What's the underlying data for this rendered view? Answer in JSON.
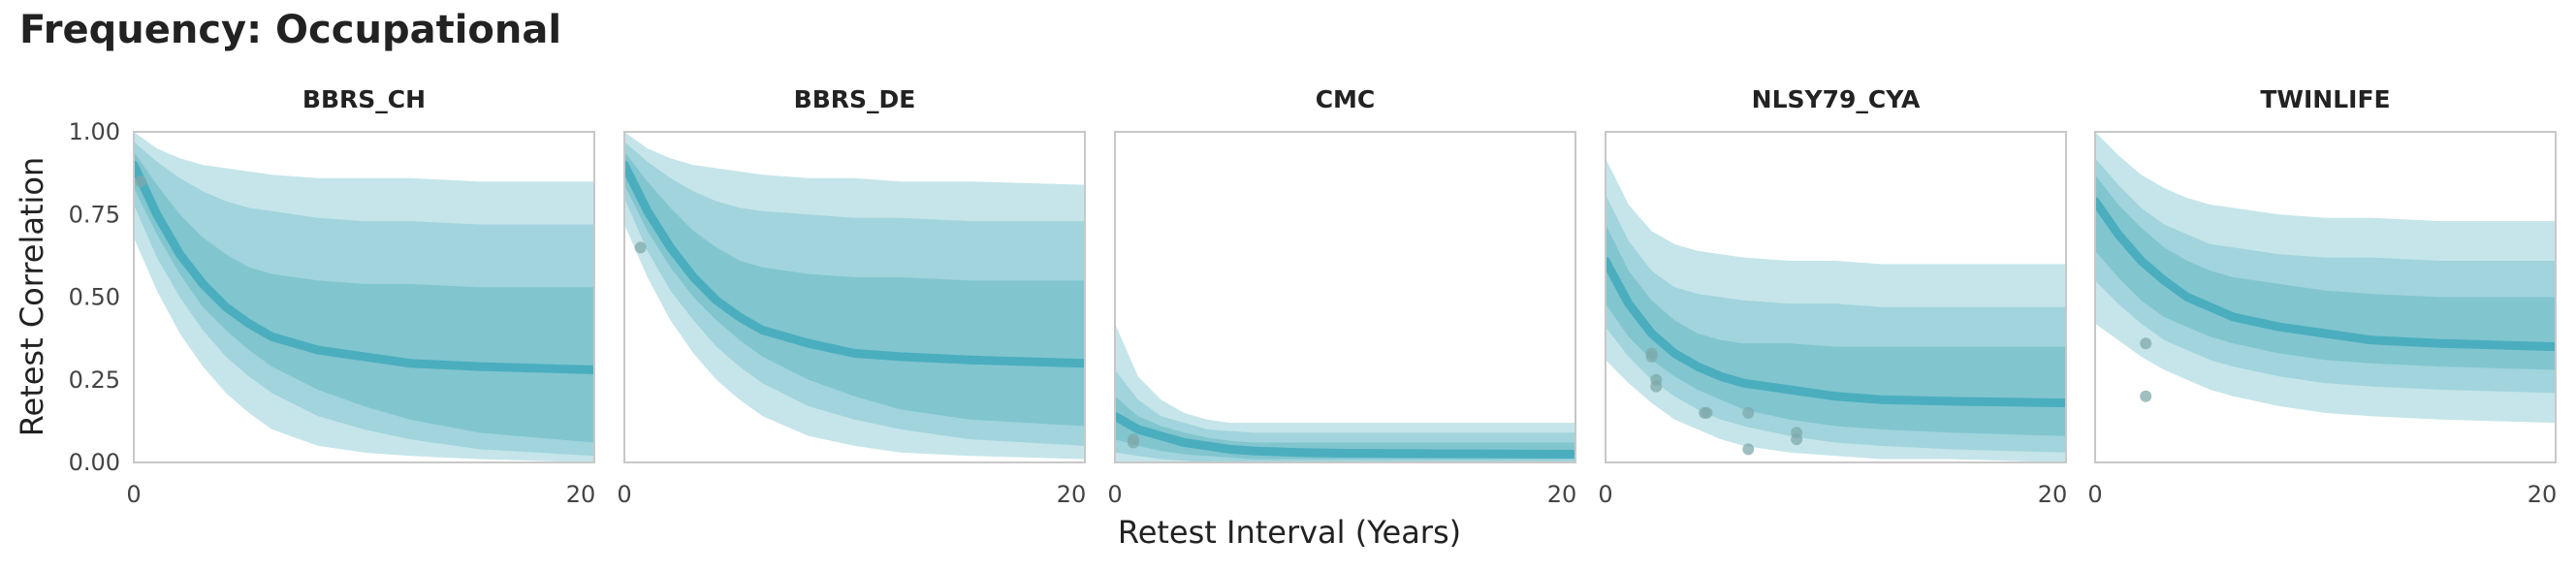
{
  "title": "Frequency: Occupational",
  "colors": {
    "band_outer": "#c5e5ea",
    "band_mid": "#a1d4dc",
    "band_inner": "#81c5cf",
    "line": "#4aaebe",
    "points": "#7fa9ab"
  },
  "chart_data": {
    "type": "line",
    "xlabel": "Retest Interval (Years)",
    "ylabel": "Retest Correlation",
    "xlim": [
      0,
      20
    ],
    "ylim": [
      0,
      1
    ],
    "xticks": [
      "0",
      "20"
    ],
    "yticks": [
      "0.00",
      "0.25",
      "0.50",
      "0.75",
      "1.00"
    ],
    "panels": [
      {
        "name": "BBRS_CH",
        "x": [
          0,
          1,
          2,
          3,
          4,
          5,
          6,
          8,
          10,
          12,
          15,
          20
        ],
        "median": [
          0.9,
          0.75,
          0.63,
          0.54,
          0.47,
          0.42,
          0.38,
          0.34,
          0.32,
          0.3,
          0.29,
          0.28
        ],
        "bands": [
          {
            "lower": [
              0.68,
              0.52,
              0.39,
              0.29,
              0.21,
              0.15,
              0.1,
              0.05,
              0.03,
              0.02,
              0.01,
              0.0
            ],
            "upper": [
              1.0,
              0.95,
              0.92,
              0.9,
              0.89,
              0.88,
              0.87,
              0.86,
              0.86,
              0.86,
              0.85,
              0.85
            ]
          },
          {
            "lower": [
              0.78,
              0.62,
              0.5,
              0.4,
              0.32,
              0.26,
              0.21,
              0.14,
              0.1,
              0.07,
              0.04,
              0.02
            ],
            "upper": [
              0.97,
              0.91,
              0.86,
              0.82,
              0.79,
              0.77,
              0.76,
              0.74,
              0.73,
              0.73,
              0.72,
              0.72
            ]
          },
          {
            "lower": [
              0.83,
              0.69,
              0.57,
              0.47,
              0.4,
              0.34,
              0.29,
              0.22,
              0.17,
              0.13,
              0.09,
              0.06
            ],
            "upper": [
              0.94,
              0.84,
              0.75,
              0.68,
              0.63,
              0.59,
              0.57,
              0.55,
              0.54,
              0.54,
              0.53,
              0.53
            ]
          }
        ],
        "points": [
          {
            "x": 0.3,
            "y": 0.85
          }
        ]
      },
      {
        "name": "BBRS_DE",
        "x": [
          0,
          1,
          2,
          3,
          4,
          5,
          6,
          8,
          10,
          12,
          15,
          20
        ],
        "median": [
          0.9,
          0.76,
          0.65,
          0.56,
          0.49,
          0.44,
          0.4,
          0.36,
          0.33,
          0.32,
          0.31,
          0.3
        ],
        "bands": [
          {
            "lower": [
              0.72,
              0.56,
              0.43,
              0.33,
              0.25,
              0.19,
              0.14,
              0.08,
              0.05,
              0.03,
              0.02,
              0.01
            ],
            "upper": [
              1.0,
              0.95,
              0.92,
              0.9,
              0.89,
              0.88,
              0.87,
              0.86,
              0.86,
              0.85,
              0.85,
              0.84
            ]
          },
          {
            "lower": [
              0.8,
              0.64,
              0.52,
              0.43,
              0.35,
              0.29,
              0.24,
              0.17,
              0.13,
              0.1,
              0.07,
              0.05
            ],
            "upper": [
              0.97,
              0.91,
              0.86,
              0.82,
              0.79,
              0.77,
              0.76,
              0.75,
              0.74,
              0.74,
              0.73,
              0.73
            ]
          },
          {
            "lower": [
              0.84,
              0.7,
              0.59,
              0.5,
              0.43,
              0.37,
              0.32,
              0.25,
              0.2,
              0.16,
              0.13,
              0.11
            ],
            "upper": [
              0.94,
              0.85,
              0.77,
              0.7,
              0.65,
              0.61,
              0.59,
              0.57,
              0.56,
              0.56,
              0.55,
              0.55
            ]
          }
        ],
        "points": [
          {
            "x": 0.7,
            "y": 0.65
          }
        ]
      },
      {
        "name": "CMC",
        "x": [
          0,
          1,
          2,
          3,
          4,
          5,
          6,
          8,
          10,
          12,
          15,
          20
        ],
        "median": [
          0.14,
          0.1,
          0.08,
          0.06,
          0.05,
          0.04,
          0.035,
          0.03,
          0.028,
          0.027,
          0.026,
          0.025
        ],
        "bands": [
          {
            "lower": [
              0.0,
              0.0,
              0.0,
              0.0,
              0.0,
              0.0,
              0.0,
              0.0,
              0.0,
              0.0,
              0.0,
              0.0
            ],
            "upper": [
              0.42,
              0.26,
              0.19,
              0.15,
              0.13,
              0.12,
              0.12,
              0.12,
              0.12,
              0.12,
              0.12,
              0.12
            ]
          },
          {
            "lower": [
              0.03,
              0.02,
              0.01,
              0.005,
              0.0,
              0.0,
              0.0,
              0.0,
              0.0,
              0.0,
              0.0,
              0.0
            ],
            "upper": [
              0.28,
              0.19,
              0.14,
              0.12,
              0.1,
              0.095,
              0.09,
              0.09,
              0.09,
              0.09,
              0.09,
              0.09
            ]
          },
          {
            "lower": [
              0.07,
              0.05,
              0.035,
              0.025,
              0.02,
              0.015,
              0.01,
              0.01,
              0.01,
              0.01,
              0.01,
              0.01
            ],
            "upper": [
              0.2,
              0.14,
              0.11,
              0.09,
              0.075,
              0.065,
              0.06,
              0.06,
              0.06,
              0.06,
              0.06,
              0.06
            ]
          }
        ],
        "points": [
          {
            "x": 0.8,
            "y": 0.07
          },
          {
            "x": 0.8,
            "y": 0.06
          }
        ]
      },
      {
        "name": "NLSY79_CYA",
        "x": [
          0,
          1,
          2,
          3,
          4,
          5,
          6,
          8,
          10,
          12,
          15,
          20
        ],
        "median": [
          0.61,
          0.48,
          0.39,
          0.33,
          0.29,
          0.26,
          0.24,
          0.22,
          0.2,
          0.19,
          0.185,
          0.18
        ],
        "bands": [
          {
            "lower": [
              0.31,
              0.24,
              0.18,
              0.13,
              0.1,
              0.07,
              0.05,
              0.03,
              0.02,
              0.01,
              0.01,
              0.0
            ],
            "upper": [
              0.92,
              0.78,
              0.7,
              0.66,
              0.64,
              0.63,
              0.62,
              0.61,
              0.61,
              0.6,
              0.6,
              0.6
            ]
          },
          {
            "lower": [
              0.41,
              0.32,
              0.25,
              0.2,
              0.16,
              0.13,
              0.11,
              0.08,
              0.06,
              0.05,
              0.04,
              0.03
            ],
            "upper": [
              0.81,
              0.67,
              0.58,
              0.53,
              0.51,
              0.5,
              0.49,
              0.48,
              0.48,
              0.47,
              0.47,
              0.47
            ]
          },
          {
            "lower": [
              0.48,
              0.38,
              0.31,
              0.26,
              0.22,
              0.19,
              0.16,
              0.13,
              0.11,
              0.1,
              0.09,
              0.08
            ],
            "upper": [
              0.72,
              0.58,
              0.49,
              0.43,
              0.39,
              0.37,
              0.36,
              0.36,
              0.35,
              0.35,
              0.35,
              0.35
            ]
          }
        ],
        "points": [
          {
            "x": 2.0,
            "y": 0.33
          },
          {
            "x": 2.0,
            "y": 0.32
          },
          {
            "x": 2.2,
            "y": 0.25
          },
          {
            "x": 2.2,
            "y": 0.23
          },
          {
            "x": 4.3,
            "y": 0.15
          },
          {
            "x": 4.4,
            "y": 0.15
          },
          {
            "x": 6.2,
            "y": 0.15
          },
          {
            "x": 6.2,
            "y": 0.04
          },
          {
            "x": 8.3,
            "y": 0.09
          },
          {
            "x": 8.3,
            "y": 0.07
          }
        ]
      },
      {
        "name": "TWINLIFE",
        "x": [
          0,
          1,
          2,
          3,
          4,
          5,
          6,
          8,
          10,
          12,
          15,
          20
        ],
        "median": [
          0.79,
          0.69,
          0.61,
          0.55,
          0.5,
          0.47,
          0.44,
          0.41,
          0.39,
          0.37,
          0.36,
          0.35
        ],
        "bands": [
          {
            "lower": [
              0.42,
              0.37,
              0.32,
              0.28,
              0.25,
              0.22,
              0.2,
              0.17,
              0.15,
              0.14,
              0.13,
              0.12
            ],
            "upper": [
              1.0,
              0.93,
              0.87,
              0.83,
              0.8,
              0.78,
              0.77,
              0.75,
              0.74,
              0.74,
              0.73,
              0.73
            ]
          },
          {
            "lower": [
              0.55,
              0.48,
              0.42,
              0.37,
              0.34,
              0.31,
              0.29,
              0.26,
              0.24,
              0.23,
              0.22,
              0.21
            ],
            "upper": [
              0.92,
              0.84,
              0.77,
              0.72,
              0.69,
              0.66,
              0.65,
              0.63,
              0.62,
              0.62,
              0.61,
              0.61
            ]
          },
          {
            "lower": [
              0.64,
              0.56,
              0.49,
              0.44,
              0.41,
              0.38,
              0.36,
              0.33,
              0.31,
              0.3,
              0.29,
              0.28
            ],
            "upper": [
              0.87,
              0.78,
              0.71,
              0.65,
              0.61,
              0.58,
              0.56,
              0.54,
              0.52,
              0.51,
              0.5,
              0.5
            ]
          }
        ],
        "points": [
          {
            "x": 2.2,
            "y": 0.36
          },
          {
            "x": 2.2,
            "y": 0.2
          }
        ]
      }
    ]
  }
}
